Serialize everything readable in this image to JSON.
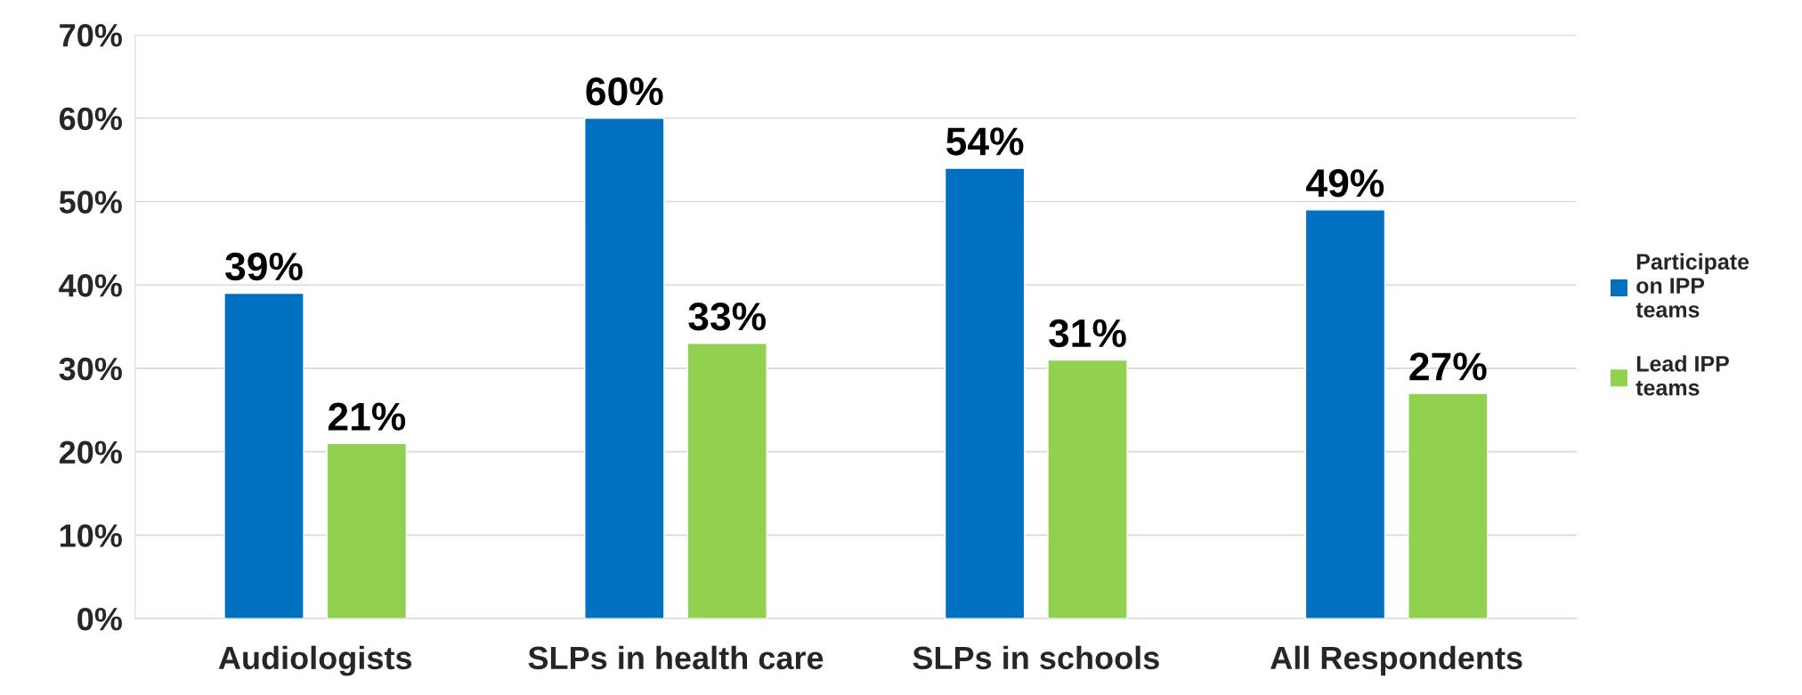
{
  "chart_data": {
    "type": "bar",
    "categories": [
      "Audiologists",
      "SLPs in health care",
      "SLPs in schools",
      "All Respondents"
    ],
    "series": [
      {
        "name": "Participate on IPP teams",
        "color": "#0070c0",
        "values": [
          39,
          60,
          54,
          49
        ],
        "value_labels": [
          "39%",
          "60%",
          "54%",
          "49%"
        ]
      },
      {
        "name": "Lead IPP teams",
        "color": "#92d050",
        "values": [
          21,
          33,
          31,
          27
        ],
        "value_labels": [
          "21%",
          "33%",
          "31%",
          "27%"
        ]
      }
    ],
    "ylim": [
      0,
      70
    ],
    "yticks": [
      {
        "value": 0,
        "label": "0%"
      },
      {
        "value": 10,
        "label": "10%"
      },
      {
        "value": 20,
        "label": "20%"
      },
      {
        "value": 30,
        "label": "30%"
      },
      {
        "value": 40,
        "label": "40%"
      },
      {
        "value": 50,
        "label": "50%"
      },
      {
        "value": 60,
        "label": "60%"
      },
      {
        "value": 70,
        "label": "70%"
      }
    ],
    "grid": "y",
    "legend": "right"
  }
}
